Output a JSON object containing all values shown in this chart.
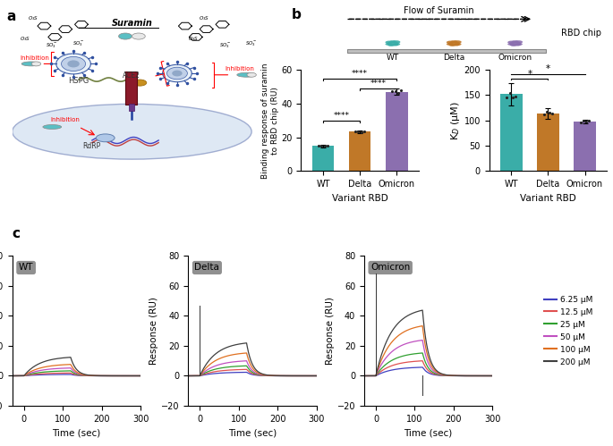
{
  "bar_colors": [
    "#3aada8",
    "#c07828",
    "#8b6faf"
  ],
  "variants": [
    "WT",
    "Delta",
    "Omicron"
  ],
  "binding_response": [
    15.0,
    23.5,
    47.0
  ],
  "binding_err": [
    0.8,
    0.8,
    2.0
  ],
  "kd_values": [
    152.0,
    114.0,
    98.0
  ],
  "kd_err": [
    22.0,
    10.0,
    4.0
  ],
  "binding_ylim": [
    0,
    60
  ],
  "kd_ylim": [
    0,
    200
  ],
  "binding_yticks": [
    0,
    20,
    40,
    60
  ],
  "kd_yticks": [
    0,
    50,
    100,
    150,
    200
  ],
  "binding_ylabel": "Binding response of suramin\nto RBD chip (RU)",
  "kd_ylabel": "K$_D$ (μM)",
  "xlabel": "Variant RBD",
  "spr_colors": [
    "#4040c0",
    "#e05050",
    "#30a030",
    "#c050c0",
    "#e07020",
    "#404040"
  ],
  "spr_labels": [
    "6.25 μM",
    "12.5 μM",
    "25 μM",
    "50 μM",
    "100 μM",
    "200 μM"
  ],
  "spr_xlim": [
    -30,
    300
  ],
  "spr_ylim": [
    -20,
    80
  ],
  "spr_xticks": [
    0,
    100,
    200,
    300
  ],
  "spr_yticks": [
    -20,
    0,
    20,
    40,
    60,
    80
  ],
  "spr_xlabel": "Time (sec)",
  "spr_ylabel": "Response (RU)",
  "panel_labels": [
    "WT",
    "Delta",
    "Omicron"
  ],
  "label_bg": "#909090",
  "background_color": "#ffffff",
  "wt_scales": [
    1.0,
    2.0,
    3.5,
    5.5,
    8.0,
    13.0
  ],
  "delta_scales": [
    2.5,
    4.5,
    7.0,
    10.5,
    16.0,
    23.0
  ],
  "omicron_scales": [
    6.0,
    10.5,
    16.0,
    25.0,
    35.0,
    46.0
  ],
  "chip_colors": [
    "#3aada8",
    "#c07828",
    "#8b6faf"
  ],
  "chip_labels": [
    "WT",
    "Delta",
    "Omicron"
  ],
  "flow_label": "Flow of Suramin",
  "chip_label": "RBD chip"
}
